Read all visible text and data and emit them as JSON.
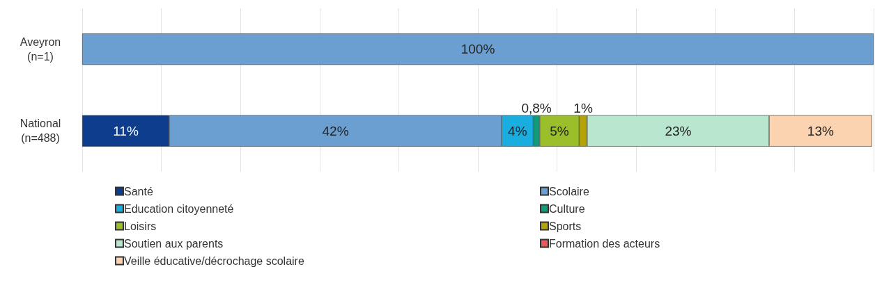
{
  "chart_data": {
    "type": "bar",
    "orientation": "horizontal",
    "stacked": true,
    "categories": [
      "Aveyron\n(n=1)",
      "National\n(n=488)"
    ],
    "series": [
      {
        "name": "Santé",
        "color": "#0d3d8c",
        "values": [
          null,
          11
        ],
        "value_labels": [
          null,
          "11%"
        ]
      },
      {
        "name": "Scolaire",
        "color": "#6b9fd1",
        "values": [
          100,
          42
        ],
        "value_labels": [
          "100%",
          "42%"
        ]
      },
      {
        "name": "Education citoyenneté",
        "color": "#1aaee0",
        "values": [
          null,
          4
        ],
        "value_labels": [
          null,
          "4%"
        ]
      },
      {
        "name": "Culture",
        "color": "#0f9c7a",
        "values": [
          null,
          0.8
        ],
        "value_labels": [
          null,
          "0,8%"
        ]
      },
      {
        "name": "Loisirs",
        "color": "#9bbf2a",
        "values": [
          null,
          5
        ],
        "value_labels": [
          null,
          "5%"
        ]
      },
      {
        "name": "Sports",
        "color": "#b5a30a",
        "values": [
          null,
          1
        ],
        "value_labels": [
          null,
          "1%"
        ]
      },
      {
        "name": "Soutien aux parents",
        "color": "#b9e6cf",
        "values": [
          null,
          23
        ],
        "value_labels": [
          null,
          "23%"
        ]
      },
      {
        "name": "Formation des acteurs",
        "color": "#e85a5a",
        "values": [
          null,
          null
        ],
        "value_labels": [
          null,
          null
        ]
      },
      {
        "name": "Veille éducative/décrochage scolaire",
        "color": "#fbd3b0",
        "values": [
          null,
          13
        ],
        "value_labels": [
          null,
          "13%"
        ]
      }
    ],
    "xlim": [
      0,
      100
    ],
    "xticks": [
      {
        "value": 0,
        "label": null
      },
      {
        "value": 10,
        "label": null
      },
      {
        "value": 20,
        "label": null
      },
      {
        "value": 30,
        "label": null
      },
      {
        "value": 40,
        "label": null
      },
      {
        "value": 50,
        "label": null
      },
      {
        "value": 60,
        "label": null
      },
      {
        "value": 70,
        "label": null
      },
      {
        "value": 80,
        "label": null
      },
      {
        "value": 90,
        "label": null
      },
      {
        "value": 100,
        "label": null
      }
    ],
    "grid": "x",
    "tick_labels": "y",
    "legend": "bottom"
  }
}
